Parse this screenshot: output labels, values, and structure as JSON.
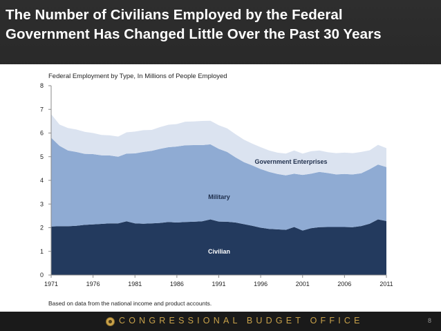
{
  "title": {
    "line1": "The Number of Civilians Employed by the Federal",
    "line2": "Government Has Changed Little Over the Past 30 Years"
  },
  "colors": {
    "civilian": "#233a5e",
    "military": "#8fabd3",
    "enterprises": "#dbe3f0",
    "accent": "#c9a24a"
  },
  "chart_data": {
    "type": "area",
    "stacked": true,
    "title": "Federal Employment by Type, In Millions of People Employed",
    "note": "Based on data from the national income and product accounts.",
    "x": [
      1971,
      1972,
      1973,
      1974,
      1975,
      1976,
      1977,
      1978,
      1979,
      1980,
      1981,
      1982,
      1983,
      1984,
      1985,
      1986,
      1987,
      1988,
      1989,
      1990,
      1991,
      1992,
      1993,
      1994,
      1995,
      1996,
      1997,
      1998,
      1999,
      2000,
      2001,
      2002,
      2003,
      2004,
      2005,
      2006,
      2007,
      2008,
      2009,
      2010,
      2011
    ],
    "series": [
      {
        "name": "Civilian",
        "values": [
          2.05,
          2.06,
          2.06,
          2.08,
          2.12,
          2.14,
          2.16,
          2.18,
          2.18,
          2.27,
          2.18,
          2.17,
          2.18,
          2.2,
          2.24,
          2.22,
          2.24,
          2.25,
          2.27,
          2.35,
          2.26,
          2.25,
          2.22,
          2.15,
          2.08,
          2.0,
          1.95,
          1.93,
          1.91,
          2.03,
          1.88,
          1.98,
          2.02,
          2.03,
          2.03,
          2.03,
          2.02,
          2.07,
          2.17,
          2.35,
          2.28
        ]
      },
      {
        "name": "Military",
        "values": [
          3.75,
          3.4,
          3.2,
          3.12,
          3.0,
          2.97,
          2.9,
          2.87,
          2.82,
          2.86,
          2.96,
          3.03,
          3.07,
          3.13,
          3.16,
          3.21,
          3.24,
          3.24,
          3.22,
          3.17,
          3.07,
          2.95,
          2.75,
          2.62,
          2.55,
          2.48,
          2.41,
          2.34,
          2.3,
          2.25,
          2.35,
          2.3,
          2.34,
          2.28,
          2.22,
          2.24,
          2.23,
          2.23,
          2.3,
          2.32,
          2.28
        ]
      },
      {
        "name": "Government Enterprises",
        "values": [
          1.0,
          0.9,
          0.95,
          0.95,
          0.93,
          0.89,
          0.86,
          0.85,
          0.85,
          0.9,
          0.92,
          0.92,
          0.88,
          0.92,
          0.95,
          0.95,
          1.0,
          1.0,
          1.02,
          1.0,
          1.0,
          1.0,
          0.98,
          0.95,
          0.92,
          0.92,
          0.9,
          0.9,
          0.92,
          0.98,
          0.9,
          0.95,
          0.9,
          0.88,
          0.9,
          0.9,
          0.9,
          0.9,
          0.8,
          0.83,
          0.8
        ]
      }
    ],
    "series_labels": {
      "civilian": "Civilian",
      "military": "Military",
      "enterprises": "Government Enterprises"
    },
    "ylim": [
      0,
      8
    ],
    "xlim": [
      1971,
      2011
    ],
    "y_ticks": [
      "0",
      "1",
      "2",
      "3",
      "4",
      "5",
      "6",
      "7",
      "8"
    ],
    "x_ticks": [
      "1971",
      "1976",
      "1981",
      "1986",
      "1991",
      "1996",
      "2001",
      "2006",
      "2011"
    ]
  },
  "footer": {
    "org": "CONGRESSIONAL BUDGET OFFICE",
    "page": "8"
  }
}
